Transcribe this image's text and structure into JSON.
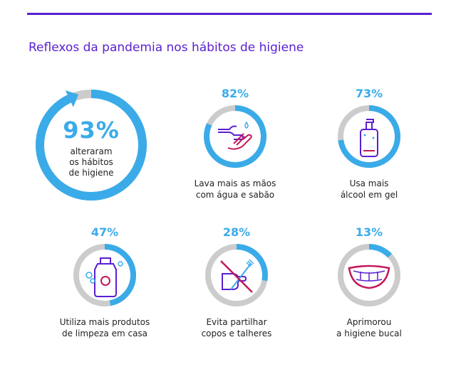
{
  "header": {
    "title": "Reflexos da pandemia nos hábitos de higiene"
  },
  "colors": {
    "accent": "#5a1fd1",
    "ring": "#3aabe8",
    "track": "#cccccc",
    "icon": "#c2185b",
    "icon_secondary": "#5a1fd1"
  },
  "chart_data": {
    "type": "pie",
    "title": "Reflexos da pandemia nos hábitos de higiene",
    "categories": [
      "alterararam os hábitos de higiene",
      "Lava mais as mãos com água e sabão",
      "Usa mais álcool em gel",
      "Utiliza mais produtos de limpeza em casa",
      "Evita partilhar copos e talheres",
      "Aprimorou a higiene bucal"
    ],
    "values": [
      93,
      82,
      73,
      47,
      28,
      13
    ],
    "unit": "%"
  },
  "main": {
    "hero": {
      "pct": "93%",
      "caption_lines": [
        "alteraram",
        "os hábitos",
        "de higiene"
      ]
    },
    "items": [
      {
        "pct": "82%",
        "label_lines": [
          "Lava mais as mãos",
          "com água e sabão"
        ],
        "icon": "hands-washing-icon"
      },
      {
        "pct": "73%",
        "label_lines": [
          "Usa mais",
          "álcool em gel"
        ],
        "icon": "sanitizer-bottle-icon"
      },
      {
        "pct": "47%",
        "label_lines": [
          "Utiliza mais produtos",
          "de limpeza em casa"
        ],
        "icon": "cleaning-bottle-icon"
      },
      {
        "pct": "28%",
        "label_lines": [
          "Evita partilhar",
          "copos e talheres"
        ],
        "icon": "no-cutlery-icon"
      },
      {
        "pct": "13%",
        "label_lines": [
          "Aprimorou",
          "a higiene bucal"
        ],
        "icon": "smile-teeth-icon"
      }
    ]
  }
}
